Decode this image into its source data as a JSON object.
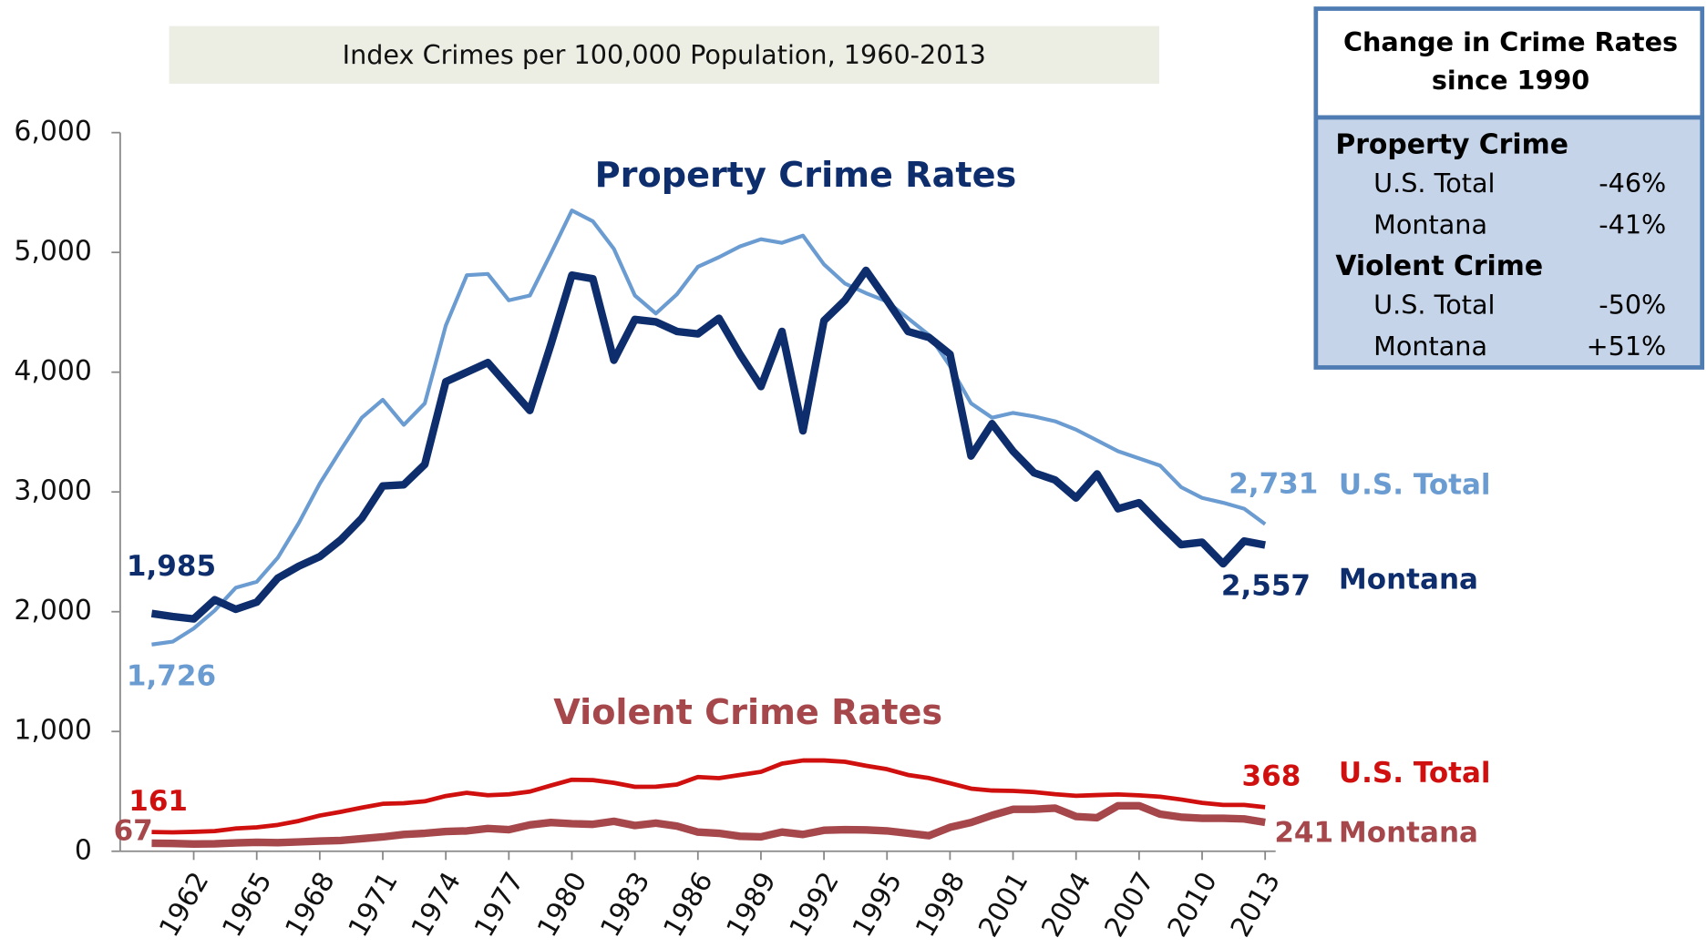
{
  "chart_data": {
    "type": "line",
    "title": "Index Crimes per 100,000 Population, 1960-2013",
    "annotations": [
      "Property Crime Rates",
      "Violent Crime Rates"
    ],
    "x": [
      1960,
      1961,
      1962,
      1963,
      1964,
      1965,
      1966,
      1967,
      1968,
      1969,
      1970,
      1971,
      1972,
      1973,
      1974,
      1975,
      1976,
      1977,
      1978,
      1979,
      1980,
      1981,
      1982,
      1983,
      1984,
      1985,
      1986,
      1987,
      1988,
      1989,
      1990,
      1991,
      1992,
      1993,
      1994,
      1995,
      1996,
      1997,
      1998,
      1999,
      2000,
      2001,
      2002,
      2003,
      2004,
      2005,
      2006,
      2007,
      2008,
      2009,
      2010,
      2011,
      2012,
      2013
    ],
    "xlim": [
      1958.5,
      2013.5
    ],
    "xticks": [
      1962,
      1965,
      1968,
      1971,
      1974,
      1977,
      1980,
      1983,
      1986,
      1989,
      1992,
      1995,
      1998,
      2001,
      2004,
      2007,
      2010,
      2013
    ],
    "ylim": [
      0,
      6000
    ],
    "yticks": [
      {
        "value": 0,
        "label": "0"
      },
      {
        "value": 1000,
        "label": "1,000"
      },
      {
        "value": 2000,
        "label": "2,000"
      },
      {
        "value": 3000,
        "label": "3,000"
      },
      {
        "value": 4000,
        "label": "4,000"
      },
      {
        "value": 5000,
        "label": "5,000"
      },
      {
        "value": 6000,
        "label": "6,000"
      }
    ],
    "series": [
      {
        "name": "U.S. Total",
        "color": "#6a9bd1",
        "values": [
          1726,
          1750,
          1860,
          2010,
          2200,
          2250,
          2450,
          2740,
          3070,
          3350,
          3620,
          3770,
          3560,
          3740,
          4390,
          4810,
          4820,
          4600,
          4640,
          4990,
          5350,
          5260,
          5030,
          4640,
          4490,
          4650,
          4880,
          4960,
          5050,
          5110,
          5080,
          5140,
          4900,
          4740,
          4660,
          4590,
          4450,
          4310,
          4050,
          3740,
          3620,
          3660,
          3630,
          3590,
          3520,
          3430,
          3340,
          3280,
          3220,
          3040,
          2950,
          2910,
          2860,
          2731
        ],
        "value_labels": [
          "1,726",
          null,
          null,
          null,
          null,
          null,
          null,
          null,
          null,
          null,
          null,
          null,
          null,
          null,
          null,
          null,
          null,
          null,
          null,
          null,
          null,
          null,
          null,
          null,
          null,
          null,
          null,
          null,
          null,
          null,
          null,
          null,
          null,
          null,
          null,
          null,
          null,
          null,
          null,
          null,
          null,
          null,
          null,
          null,
          null,
          null,
          null,
          null,
          null,
          null,
          null,
          null,
          null,
          "2,731"
        ]
      },
      {
        "name": "Montana",
        "color": "#0d2d6c",
        "values": [
          1985,
          1960,
          1940,
          2100,
          2020,
          2080,
          2280,
          2380,
          2460,
          2600,
          2780,
          3050,
          3060,
          3230,
          3920,
          4000,
          4080,
          3880,
          3680,
          4230,
          4810,
          4780,
          4100,
          4440,
          4420,
          4340,
          4320,
          4450,
          4150,
          3880,
          4340,
          3510,
          4430,
          4600,
          4850,
          4600,
          4340,
          4290,
          4150,
          3300,
          3570,
          3340,
          3160,
          3100,
          2950,
          3150,
          2860,
          2910,
          2730,
          2560,
          2580,
          2400,
          2590,
          2557
        ],
        "value_labels": [
          "1,985",
          null,
          null,
          null,
          null,
          null,
          null,
          null,
          null,
          null,
          null,
          null,
          null,
          null,
          null,
          null,
          null,
          null,
          null,
          null,
          null,
          null,
          null,
          null,
          null,
          null,
          null,
          null,
          null,
          null,
          null,
          null,
          null,
          null,
          null,
          null,
          null,
          null,
          null,
          null,
          null,
          null,
          null,
          null,
          null,
          null,
          null,
          null,
          null,
          null,
          null,
          null,
          null,
          "2,557"
        ]
      },
      {
        "name": "U.S. Total",
        "color": "#d0100e",
        "values": [
          161,
          158,
          162,
          168,
          190,
          200,
          220,
          253,
          298,
          329,
          364,
          396,
          401,
          417,
          461,
          488,
          468,
          475,
          498,
          549,
          597,
          594,
          571,
          538,
          539,
          557,
          620,
          610,
          637,
          663,
          732,
          758,
          758,
          747,
          714,
          685,
          637,
          611,
          568,
          523,
          507,
          504,
          494,
          476,
          463,
          469,
          474,
          467,
          455,
          432,
          404,
          387,
          387,
          368
        ],
        "value_labels": [
          "161",
          null,
          null,
          null,
          null,
          null,
          null,
          null,
          null,
          null,
          null,
          null,
          null,
          null,
          null,
          null,
          null,
          null,
          null,
          null,
          null,
          null,
          null,
          null,
          null,
          null,
          null,
          null,
          null,
          null,
          null,
          null,
          null,
          null,
          null,
          null,
          null,
          null,
          null,
          null,
          null,
          null,
          null,
          null,
          null,
          null,
          null,
          null,
          null,
          null,
          null,
          null,
          null,
          "368"
        ]
      },
      {
        "name": "Montana",
        "color": "#a5474b",
        "values": [
          67,
          65,
          60,
          62,
          70,
          75,
          72,
          78,
          85,
          90,
          105,
          120,
          140,
          150,
          165,
          170,
          190,
          180,
          220,
          240,
          230,
          225,
          250,
          215,
          235,
          210,
          160,
          150,
          125,
          120,
          160,
          140,
          175,
          180,
          178,
          170,
          150,
          130,
          200,
          240,
          300,
          350,
          350,
          360,
          290,
          280,
          380,
          380,
          310,
          285,
          275,
          275,
          270,
          241
        ],
        "value_labels": [
          "67",
          null,
          null,
          null,
          null,
          null,
          null,
          null,
          null,
          null,
          null,
          null,
          null,
          null,
          null,
          null,
          null,
          null,
          null,
          null,
          null,
          null,
          null,
          null,
          null,
          null,
          null,
          null,
          null,
          null,
          null,
          null,
          null,
          null,
          null,
          null,
          null,
          null,
          null,
          null,
          null,
          null,
          null,
          null,
          null,
          null,
          null,
          null,
          null,
          null,
          null,
          null,
          null,
          "241"
        ]
      }
    ]
  },
  "change_table": {
    "title": "Change in Crime Rates since 1990",
    "sections": [
      {
        "heading": "Property Crime",
        "rows": [
          [
            "U.S. Total",
            "-46%"
          ],
          [
            "Montana",
            "-41%"
          ]
        ]
      },
      {
        "heading": "Violent Crime",
        "rows": [
          [
            "U.S. Total",
            "-50%"
          ],
          [
            "Montana",
            "+51%"
          ]
        ]
      }
    ]
  }
}
